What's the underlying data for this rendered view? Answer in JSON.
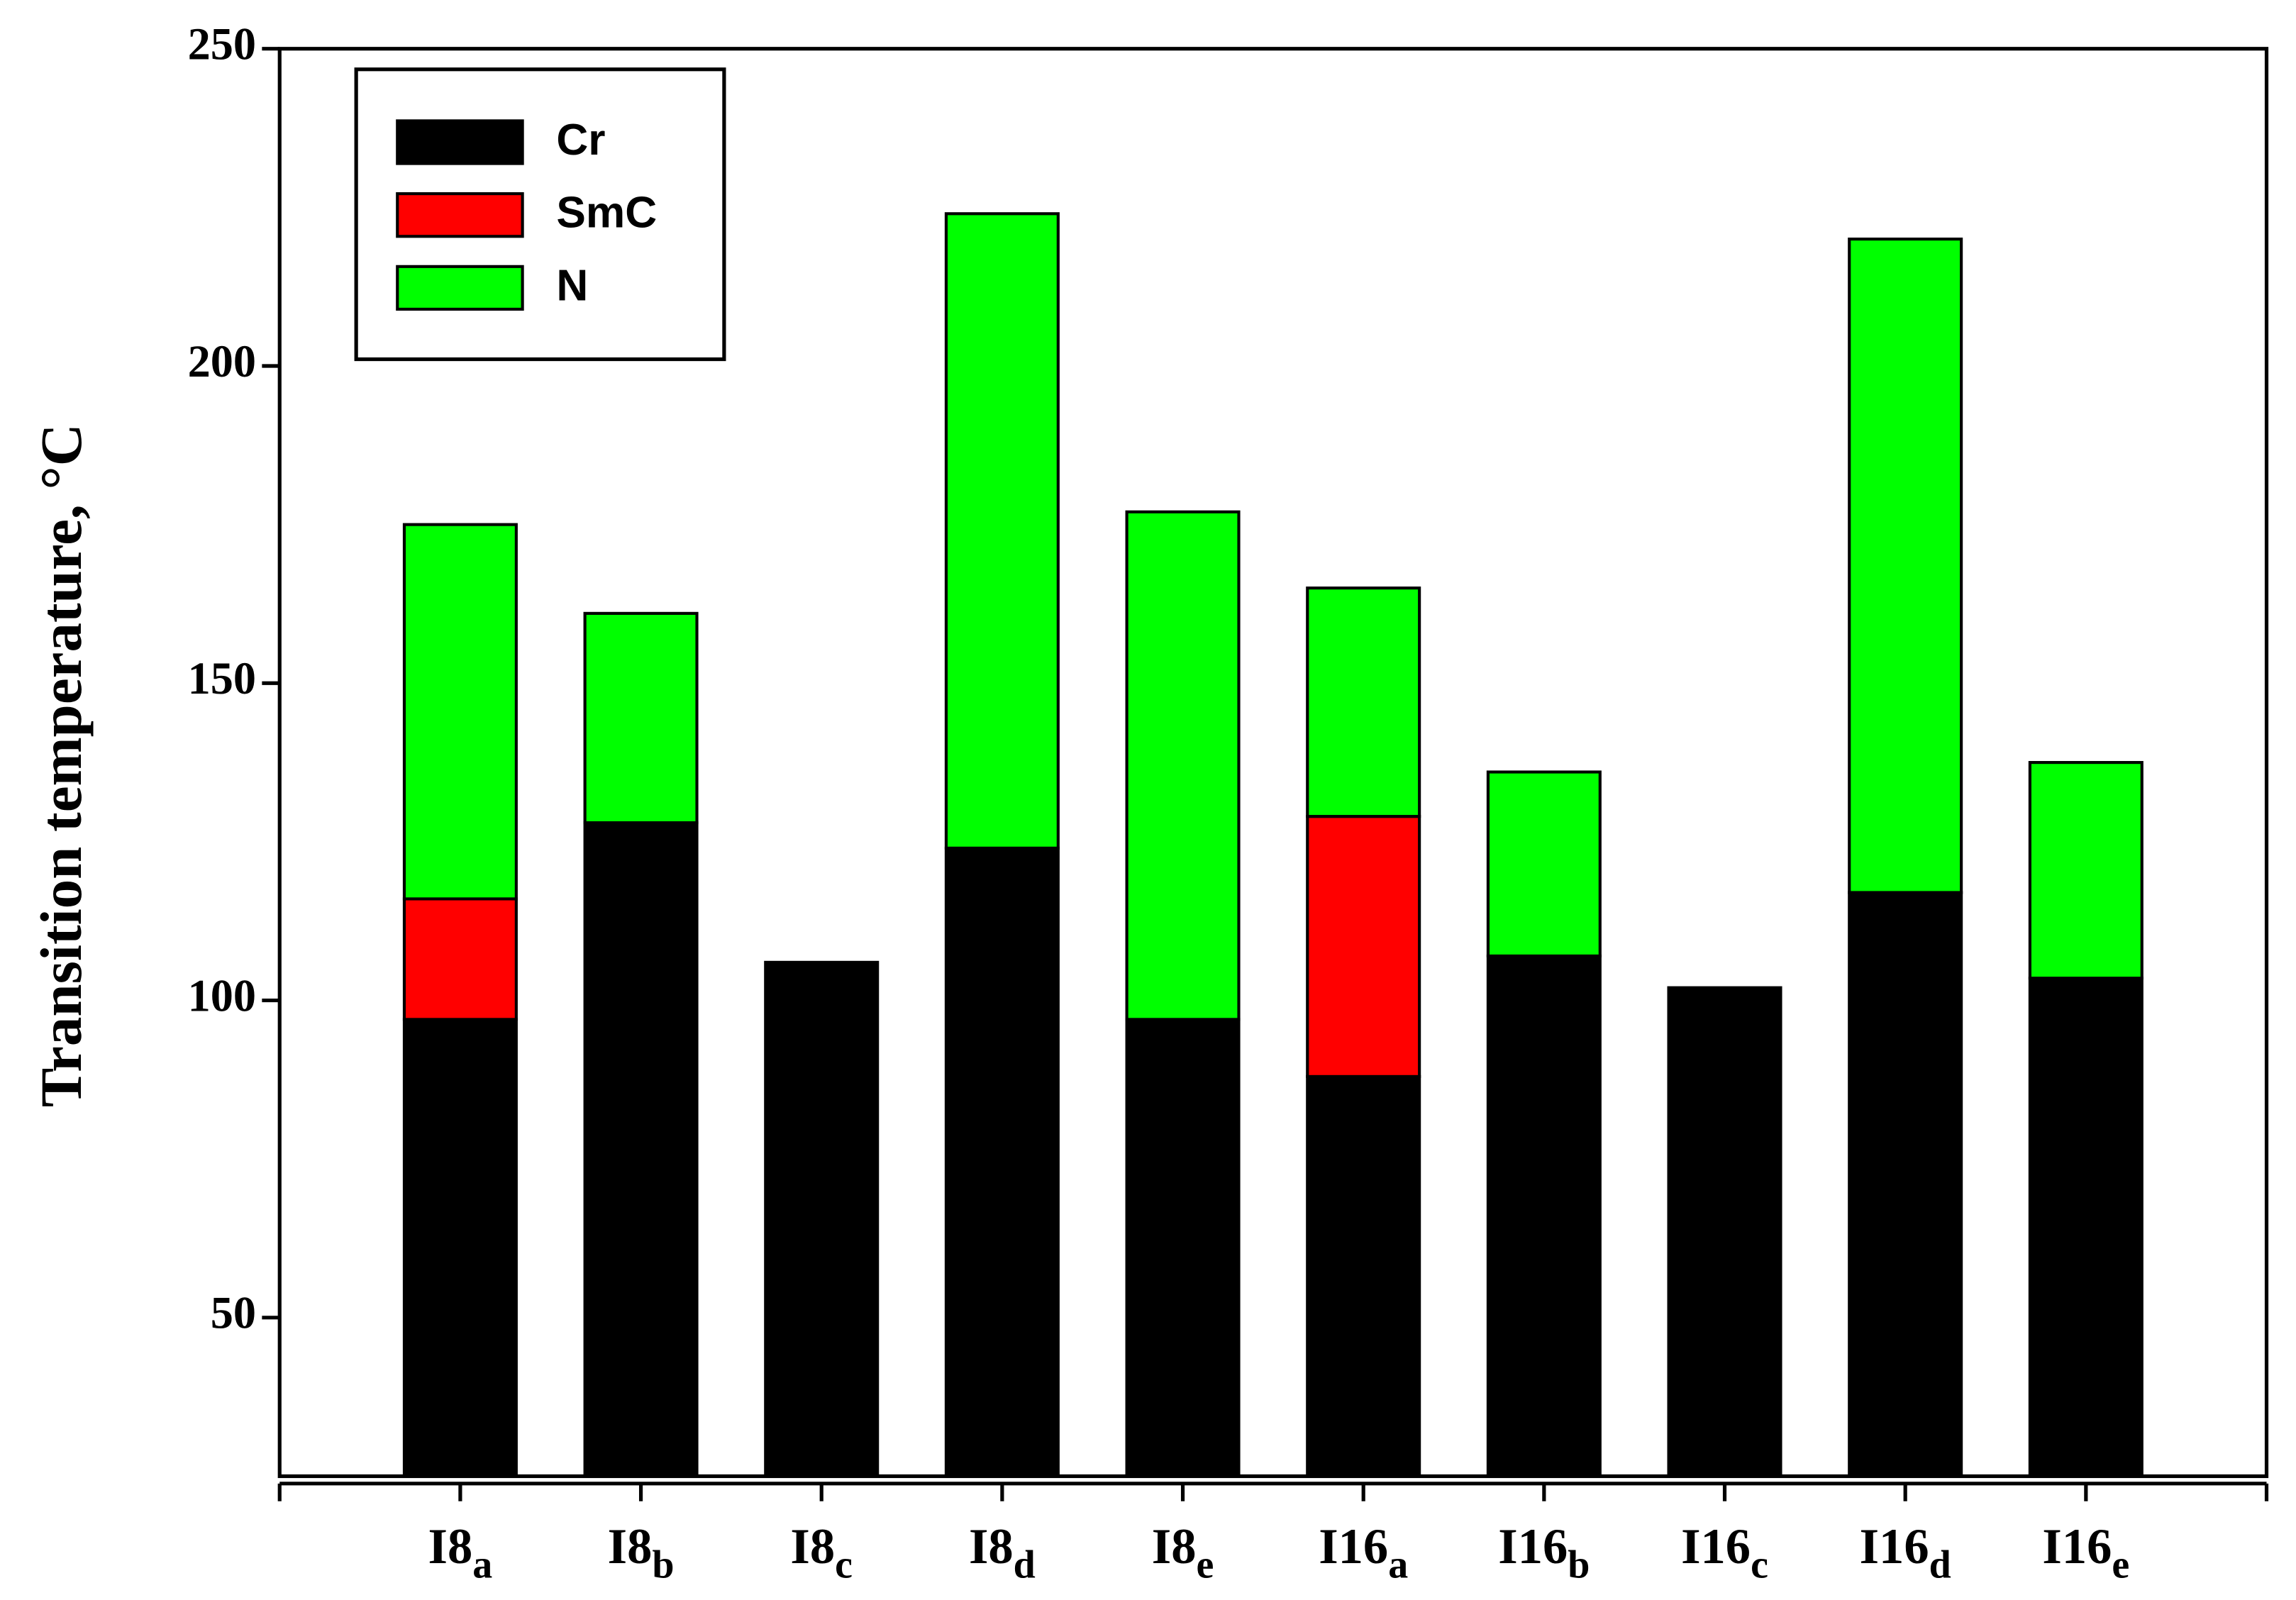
{
  "chart_data": {
    "type": "stacked_bar",
    "y_label": "Transition temperature, °C",
    "categories": [
      "I8a",
      "I8b",
      "I8c",
      "I8d",
      "I8e",
      "I16a",
      "I16b",
      "I16c",
      "I16d",
      "I16e"
    ],
    "series": [
      {
        "name": "Cr",
        "color": "#000000",
        "values": [
          97,
          128,
          106,
          124,
          97,
          88,
          107,
          102,
          117,
          103.5
        ]
      },
      {
        "name": "SmC",
        "color": "#ff0000",
        "values": [
          19,
          null,
          null,
          null,
          null,
          41,
          null,
          null,
          null,
          null
        ]
      },
      {
        "name": "N",
        "color": "#00ff00",
        "values": [
          59,
          33,
          null,
          100,
          80,
          36,
          29,
          null,
          103,
          34
        ]
      }
    ],
    "ylim": [
      25,
      250
    ],
    "yticks": [
      50,
      100,
      150,
      200,
      250
    ],
    "legend": "upper left"
  }
}
